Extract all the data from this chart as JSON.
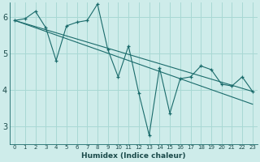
{
  "xlabel": "Humidex (Indice chaleur)",
  "bg_color": "#ceecea",
  "grid_color": "#a8d8d4",
  "line_color": "#1a6b6b",
  "xlim": [
    -0.5,
    23.5
  ],
  "ylim": [
    2.5,
    6.4
  ],
  "yticks": [
    3,
    4,
    5,
    6
  ],
  "xtick_labels": [
    "0",
    "1",
    "2",
    "3",
    "4",
    "5",
    "6",
    "7",
    "8",
    "9",
    "10",
    "11",
    "12",
    "13",
    "14",
    "15",
    "16",
    "17",
    "18",
    "19",
    "20",
    "21",
    "22",
    "23"
  ],
  "lines": [
    {
      "x": [
        0,
        1,
        2,
        3,
        4,
        5,
        6,
        7,
        8,
        9,
        10,
        11,
        12,
        13,
        14,
        15,
        16,
        17,
        18,
        19,
        20,
        21,
        22,
        23
      ],
      "y": [
        5.9,
        5.95,
        6.15,
        5.7,
        4.8,
        5.75,
        5.85,
        5.9,
        6.35,
        5.1,
        4.35,
        5.2,
        3.9,
        2.75,
        4.6,
        3.35,
        4.3,
        4.35,
        4.65,
        4.55,
        4.15,
        4.1,
        4.35,
        3.95
      ]
    },
    {
      "x": [
        0,
        23
      ],
      "y": [
        5.9,
        3.95
      ]
    },
    {
      "x": [
        0,
        23
      ],
      "y": [
        5.9,
        3.6
      ]
    }
  ]
}
